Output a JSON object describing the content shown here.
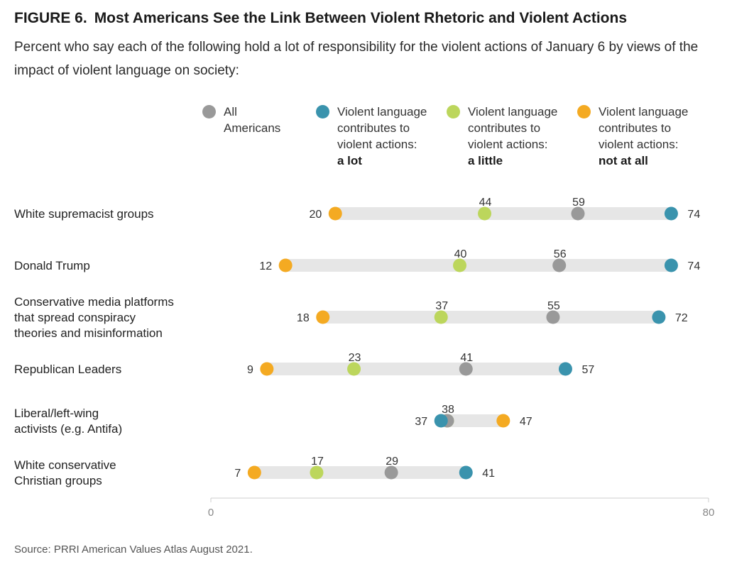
{
  "figure_label": "FIGURE 6.",
  "title": "Most Americans See the Link Between Violent Rhetoric and Violent Actions",
  "subtitle": "Percent who say each of the following hold a lot of responsibility for the violent actions of January 6 by views of the impact of violent language on society:",
  "source": "Source: PRRI American Values Atlas August 2021.",
  "colors": {
    "all": "#999999",
    "a_lot": "#3a93ad",
    "a_little": "#bcd65c",
    "not_at_all": "#f4aa22",
    "track": "#e6e6e6"
  },
  "legend": [
    {
      "key": "all",
      "line1": "All",
      "line2": "Americans",
      "line3": "",
      "bold": ""
    },
    {
      "key": "a_lot",
      "line1": "Violent language",
      "line2": "contributes to",
      "line3": "violent actions:",
      "bold": "a lot"
    },
    {
      "key": "a_little",
      "line1": "Violent language",
      "line2": "contributes to",
      "line3": "violent actions:",
      "bold": "a little"
    },
    {
      "key": "not_at_all",
      "line1": "Violent language",
      "line2": "contributes to",
      "line3": "violent actions:",
      "bold": "not at all"
    }
  ],
  "chart_data": {
    "type": "scatter",
    "subtype": "dot-range",
    "xlim": [
      0,
      80
    ],
    "ticks": [
      0,
      80
    ],
    "series": [
      {
        "key": "all",
        "name": "All Americans"
      },
      {
        "key": "a_lot",
        "name": "Violent language contributes to violent actions: a lot"
      },
      {
        "key": "a_little",
        "name": "Violent language contributes to violent actions: a little"
      },
      {
        "key": "not_at_all",
        "name": "Violent language contributes to violent actions: not at all"
      }
    ],
    "rows": [
      {
        "label": [
          "White supremacist groups"
        ],
        "values": {
          "not_at_all": 20,
          "a_little": 44,
          "all": 59,
          "a_lot": 74
        }
      },
      {
        "label": [
          "Donald Trump"
        ],
        "values": {
          "not_at_all": 12,
          "a_little": 40,
          "all": 56,
          "a_lot": 74
        }
      },
      {
        "label": [
          "Conservative media platforms",
          "that spread conspiracy",
          "theories and misinformation"
        ],
        "values": {
          "not_at_all": 18,
          "a_little": 37,
          "all": 55,
          "a_lot": 72
        }
      },
      {
        "label": [
          "Republican Leaders"
        ],
        "values": {
          "not_at_all": 9,
          "a_little": 23,
          "all": 41,
          "a_lot": 57
        }
      },
      {
        "label": [
          "Liberal/left-wing",
          "activists (e.g. Antifa)"
        ],
        "values": {
          "a_lot": 37,
          "a_little": 38,
          "all": 38,
          "not_at_all": 47
        }
      },
      {
        "label": [
          "White conservative",
          "Christian groups"
        ],
        "values": {
          "not_at_all": 7,
          "a_little": 17,
          "all": 29,
          "a_lot": 41
        }
      }
    ]
  }
}
